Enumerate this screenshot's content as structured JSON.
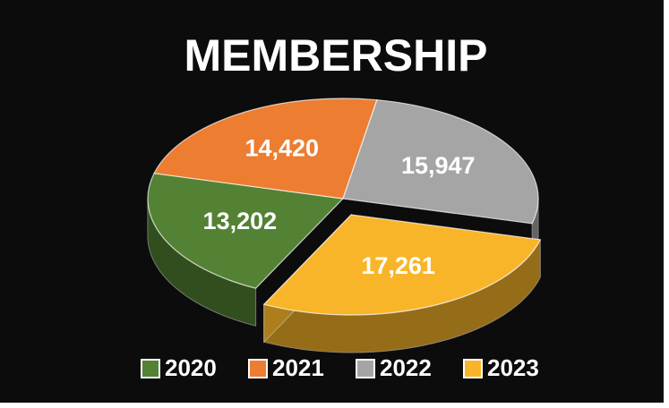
{
  "chart_data": {
    "type": "pie",
    "title": "MEMBERSHIP",
    "categories": [
      "2020",
      "2021",
      "2022",
      "2023"
    ],
    "values": [
      13202,
      14420,
      15947,
      17261
    ],
    "value_labels": [
      "13,202",
      "14,420",
      "15,947",
      "17,261"
    ],
    "colors": [
      "#548235",
      "#ed7d31",
      "#a5a5a5",
      "#f9b529"
    ],
    "exploded": [
      "2023"
    ],
    "legend": "bottom"
  }
}
